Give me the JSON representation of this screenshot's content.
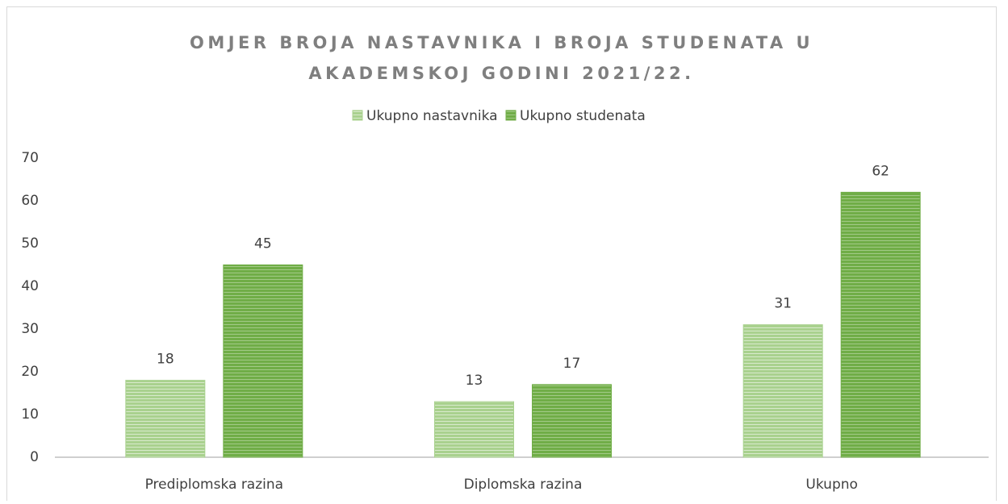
{
  "chart_data": {
    "type": "bar",
    "title": "OMJER BROJA NASTAVNIKA I BROJA STUDENATA U\nAKADEMSKOJ GODINI 2021/22.",
    "categories": [
      "Prediplomska razina",
      "Diplomska razina",
      "Ukupno"
    ],
    "series": [
      {
        "name": "Ukupno nastavnika",
        "color": "#a9d18e",
        "values": [
          18,
          13,
          31
        ]
      },
      {
        "name": "Ukupno studenata",
        "color": "#70ad47",
        "values": [
          45,
          17,
          62
        ]
      }
    ],
    "ylim": [
      0,
      70
    ],
    "yticks": [
      0,
      10,
      20,
      30,
      40,
      50,
      60,
      70
    ],
    "grid": false,
    "legend": "top"
  }
}
